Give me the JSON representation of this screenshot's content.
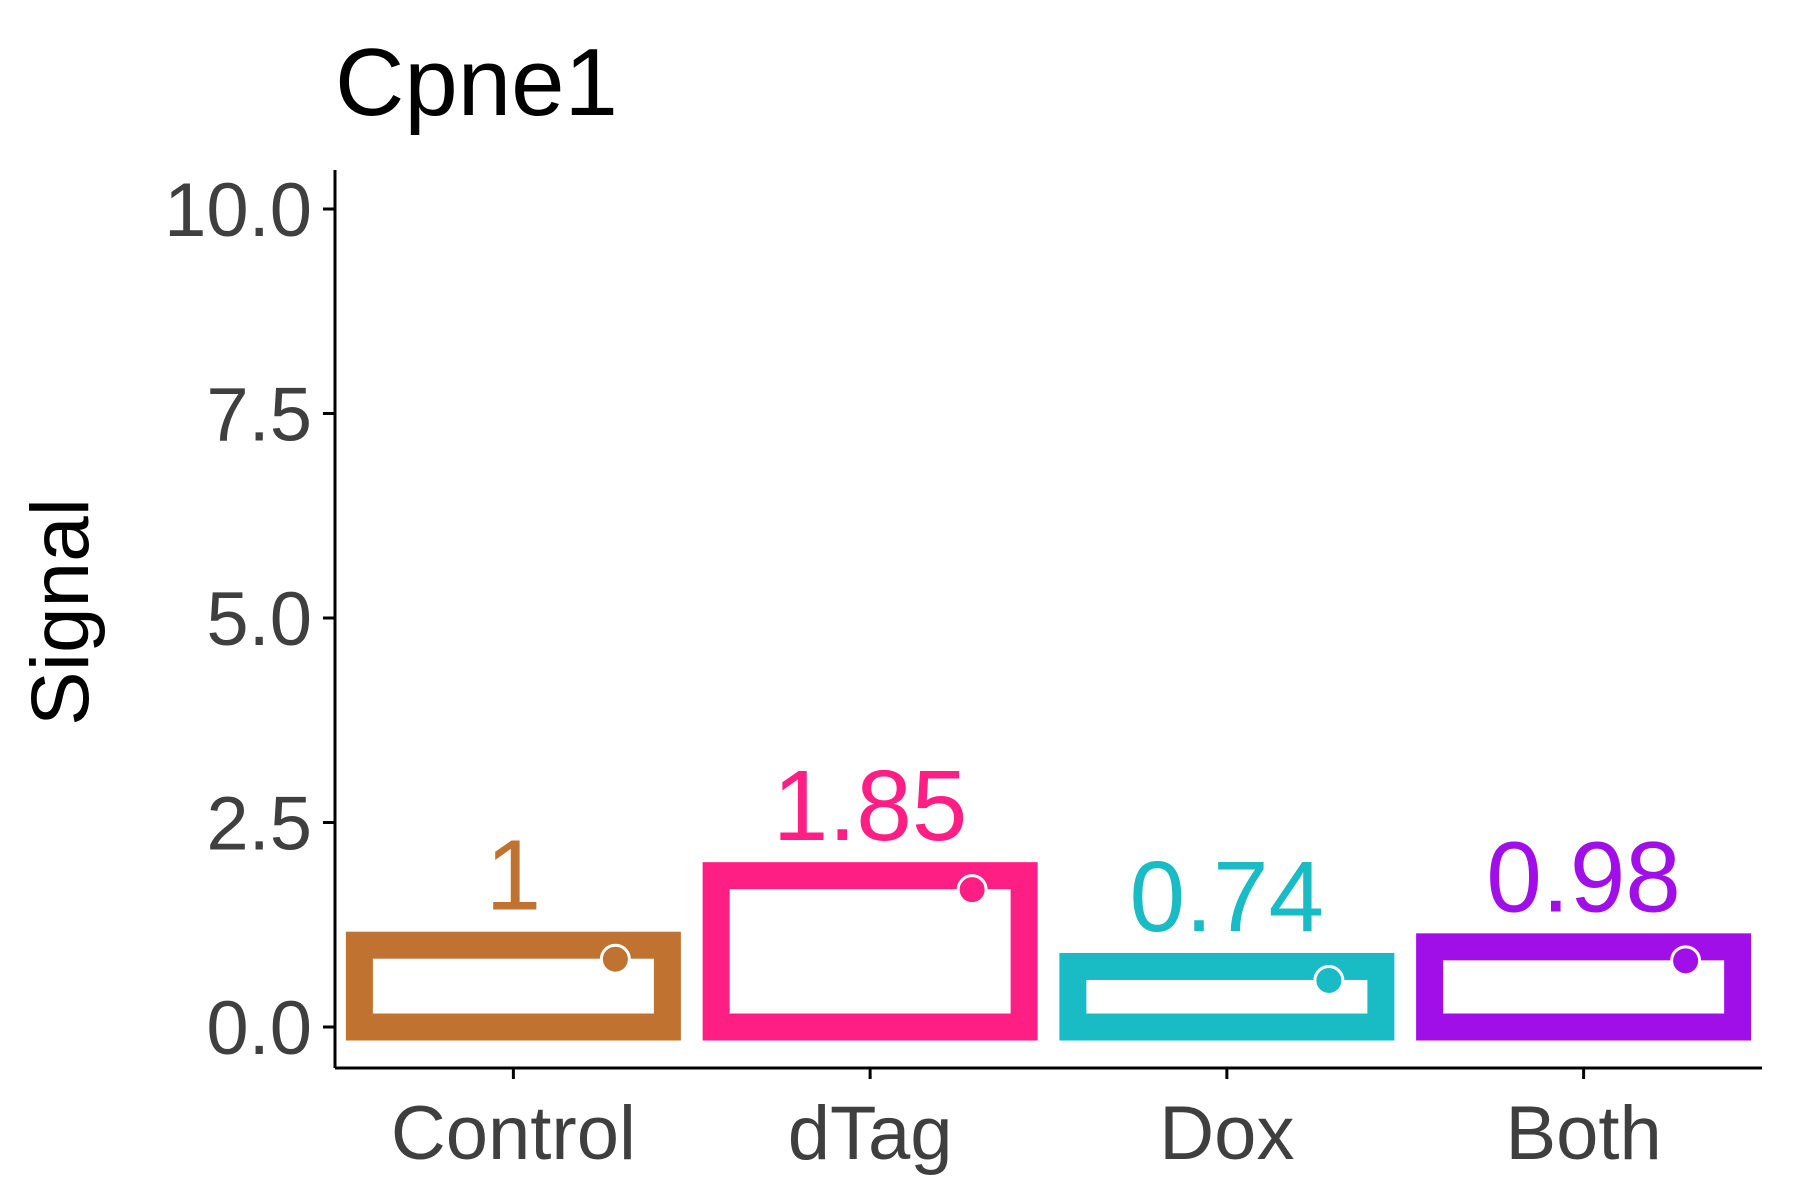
{
  "chart_data": {
    "type": "bar",
    "title": "Cpne1",
    "xlabel": "",
    "ylabel": "Signal",
    "categories": [
      "Control",
      "dTag",
      "Dox",
      "Both"
    ],
    "values": [
      1,
      1.85,
      0.74,
      0.98
    ],
    "value_labels": [
      "1",
      "1.85",
      "0.74",
      "0.98"
    ],
    "colors": [
      "#C07230",
      "#FF1F84",
      "#19BBC4",
      "#A10FE8"
    ],
    "ylim": [
      0,
      10
    ],
    "yticks": [
      0,
      2.5,
      5,
      7.5,
      10
    ],
    "ytick_labels": [
      "0.0",
      "2.5",
      "5.0",
      "7.5",
      "10.0"
    ],
    "grid": false,
    "legend": "none"
  }
}
